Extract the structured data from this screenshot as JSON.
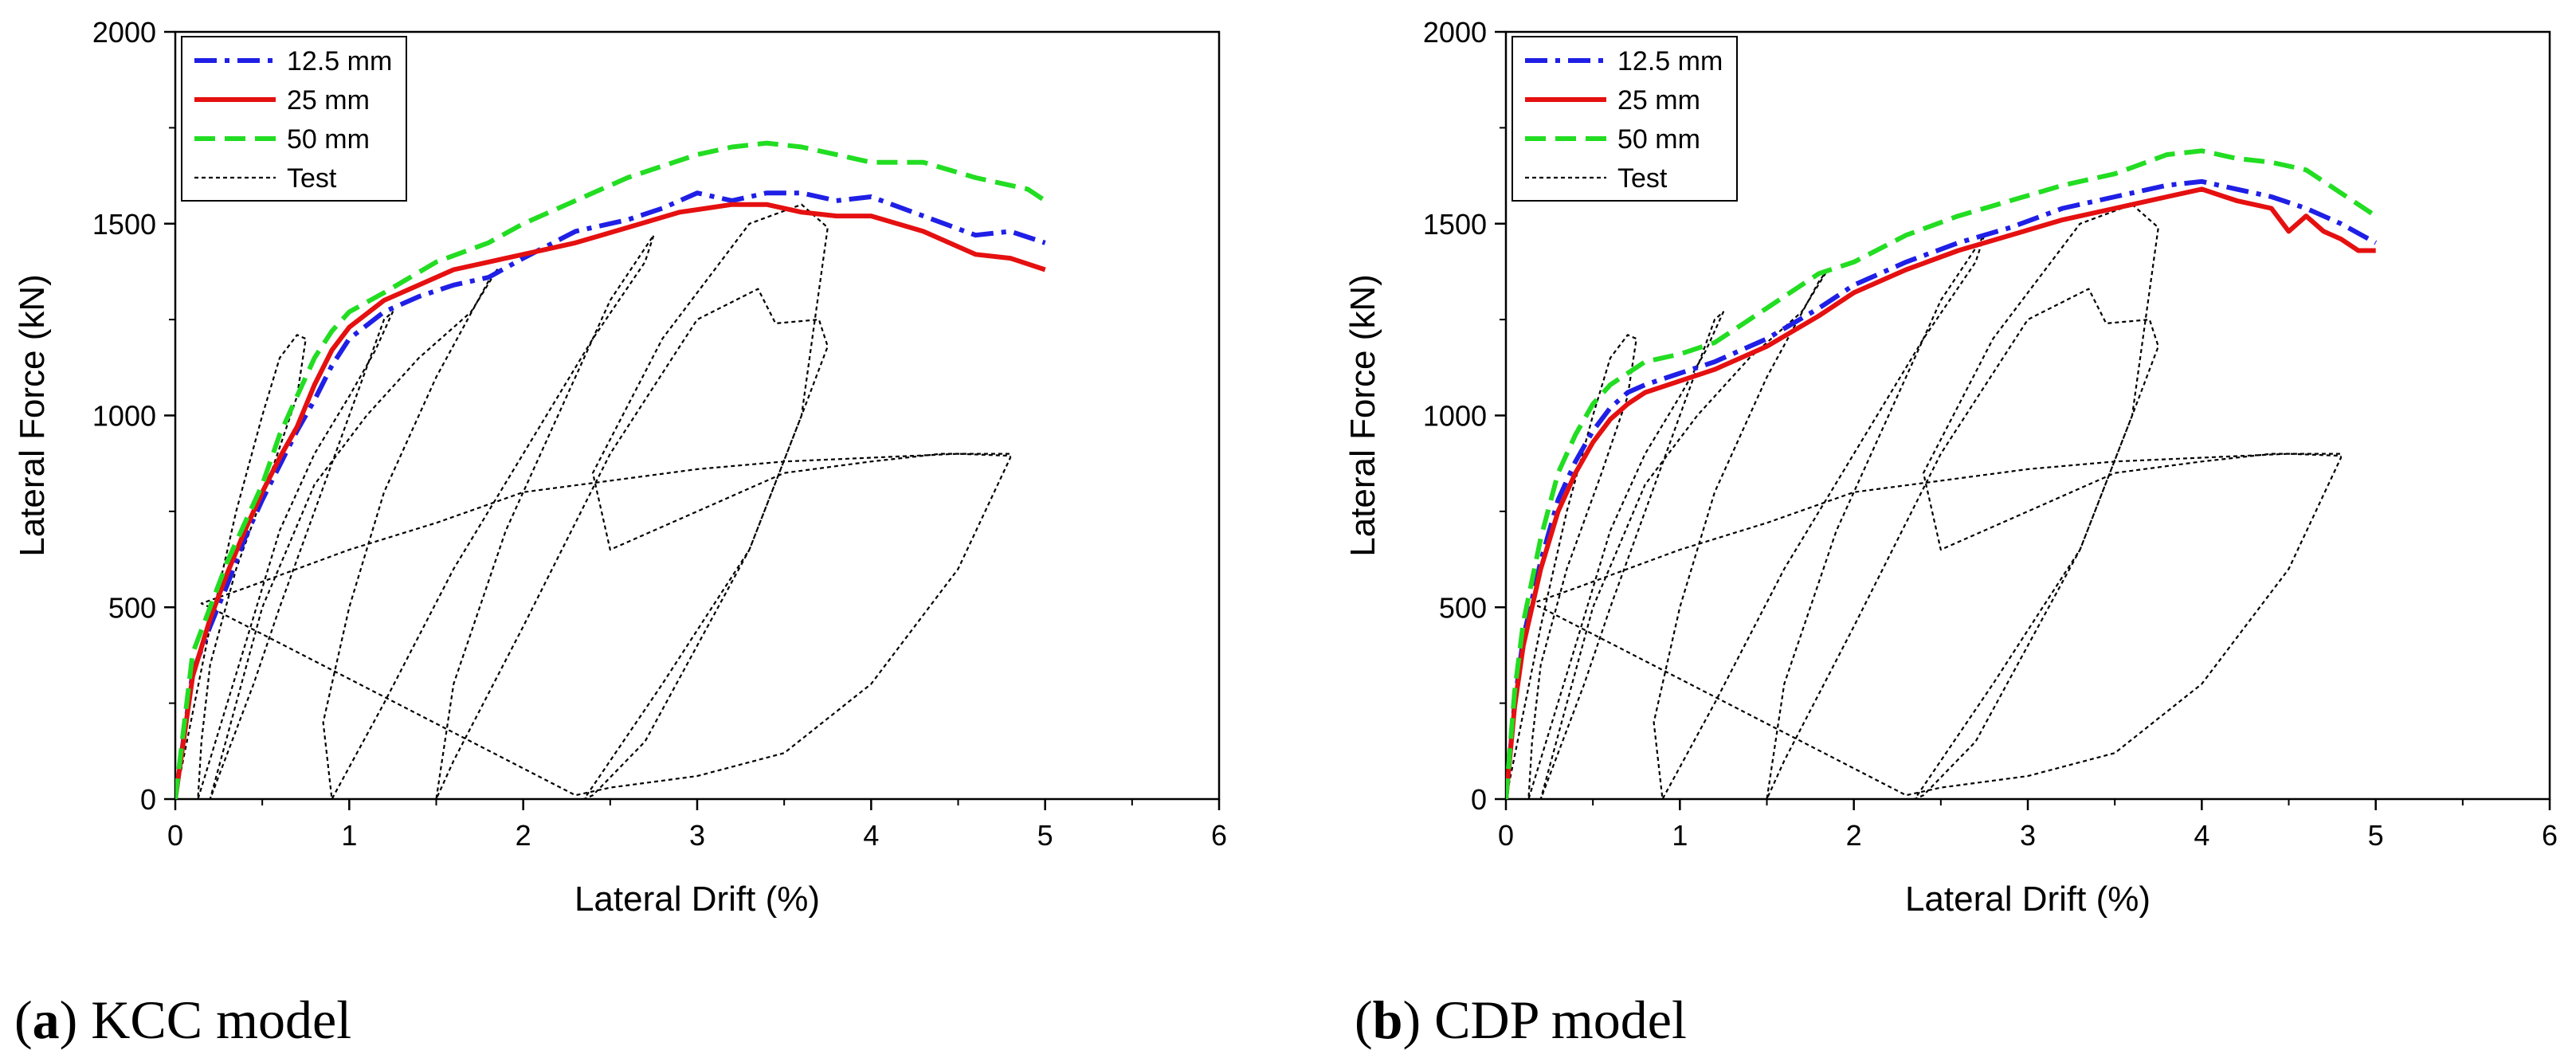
{
  "chart_data": [
    {
      "type": "line",
      "caption": {
        "letter": "(a)",
        "text": " KCC model"
      },
      "xlabel": "Lateral Drift (%)",
      "ylabel": "Lateral Force (kN)",
      "xlim": [
        0,
        6
      ],
      "ylim": [
        0,
        2000
      ],
      "xticks": [
        "0",
        "1",
        "2",
        "3",
        "4",
        "5",
        "6"
      ],
      "yticks": [
        "0",
        "500",
        "1000",
        "1500",
        "2000"
      ],
      "legend_position": "top-left",
      "series": [
        {
          "name": "12.5 mm",
          "color": "#1f1fe6",
          "dash": "dashdot",
          "x": [
            0,
            0.1,
            0.2,
            0.3,
            0.4,
            0.5,
            0.6,
            0.7,
            0.8,
            0.9,
            1.0,
            1.2,
            1.4,
            1.6,
            1.8,
            2.0,
            2.3,
            2.6,
            2.8,
            3.0,
            3.2,
            3.4,
            3.6,
            3.8,
            4.0,
            4.3,
            4.6,
            4.8,
            5.0
          ],
          "y": [
            0,
            330,
            450,
            560,
            680,
            780,
            870,
            960,
            1040,
            1130,
            1200,
            1270,
            1310,
            1340,
            1360,
            1410,
            1480,
            1510,
            1540,
            1580,
            1560,
            1580,
            1580,
            1560,
            1570,
            1520,
            1470,
            1480,
            1450
          ]
        },
        {
          "name": "25 mm",
          "color": "#e51010",
          "dash": "solid",
          "x": [
            0,
            0.1,
            0.2,
            0.3,
            0.4,
            0.5,
            0.6,
            0.7,
            0.8,
            0.9,
            1.0,
            1.2,
            1.4,
            1.6,
            1.8,
            2.0,
            2.3,
            2.6,
            2.9,
            3.2,
            3.4,
            3.6,
            3.8,
            4.0,
            4.3,
            4.6,
            4.8,
            5.0
          ],
          "y": [
            0,
            320,
            470,
            590,
            700,
            800,
            890,
            970,
            1080,
            1170,
            1230,
            1300,
            1340,
            1380,
            1400,
            1420,
            1450,
            1490,
            1530,
            1550,
            1550,
            1530,
            1520,
            1520,
            1480,
            1420,
            1410,
            1380
          ]
        },
        {
          "name": "50 mm",
          "color": "#22dd22",
          "dash": "dashed",
          "x": [
            0,
            0.1,
            0.2,
            0.3,
            0.4,
            0.5,
            0.6,
            0.7,
            0.8,
            0.9,
            1.0,
            1.2,
            1.5,
            1.8,
            2.0,
            2.3,
            2.6,
            2.8,
            3.0,
            3.2,
            3.4,
            3.6,
            3.8,
            4.0,
            4.3,
            4.6,
            4.9,
            5.0
          ],
          "y": [
            0,
            380,
            500,
            620,
            720,
            820,
            950,
            1050,
            1150,
            1220,
            1270,
            1320,
            1400,
            1450,
            1500,
            1560,
            1620,
            1650,
            1680,
            1700,
            1710,
            1700,
            1680,
            1660,
            1660,
            1620,
            1590,
            1560
          ]
        },
        {
          "name": "Test",
          "color": "#000000",
          "dash": "dotted",
          "x": [
            0,
            0.08,
            0.2,
            0.35,
            0.5,
            0.6,
            0.7,
            0.75,
            0.7,
            0.55,
            0.35,
            0.2,
            0.15,
            0.13,
            0.4,
            0.6,
            0.8,
            1.0,
            1.15,
            1.25,
            1.2,
            1.0,
            0.8,
            0.6,
            0.45,
            0.3,
            0.2,
            0.5,
            0.8,
            1.1,
            1.4,
            1.7,
            1.85,
            1.8,
            1.5,
            1.2,
            1.0,
            0.85,
            0.9,
            1.2,
            1.6,
            2.0,
            2.4,
            2.7,
            2.75,
            2.5,
            2.2,
            1.9,
            1.6,
            1.5,
            1.6,
            2.0,
            2.5,
            3.0,
            3.35,
            3.45,
            3.7,
            3.75,
            3.6,
            3.3,
            3.0,
            2.7,
            2.4,
            2.35,
            2.8,
            3.3,
            3.6,
            3.75,
            3.6,
            3.3,
            2.8,
            2.4,
            2.5,
            3.0,
            3.5,
            4.0,
            4.4,
            4.8,
            4.8,
            4.5,
            4.0,
            3.5,
            3.0,
            2.5,
            2.3,
            0.2,
            0.15,
            0.4,
            1.0,
            1.5,
            2.0,
            2.5,
            3.0,
            3.5,
            4.0,
            4.5,
            4.8
          ],
          "y": [
            0,
            180,
            450,
            750,
            1000,
            1150,
            1210,
            1200,
            1050,
            850,
            600,
            350,
            150,
            0,
            400,
            700,
            900,
            1050,
            1170,
            1270,
            1250,
            1000,
            750,
            500,
            300,
            120,
            0,
            500,
            820,
            1000,
            1150,
            1270,
            1380,
            1350,
            1100,
            800,
            500,
            200,
            0,
            250,
            600,
            900,
            1200,
            1400,
            1470,
            1300,
            1000,
            700,
            300,
            0,
            100,
            450,
            900,
            1250,
            1330,
            1240,
            1250,
            1180,
            1000,
            650,
            400,
            150,
            10,
            0,
            300,
            650,
            1000,
            1490,
            1550,
            1500,
            1200,
            850,
            650,
            750,
            850,
            880,
            900,
            900,
            890,
            600,
            300,
            120,
            60,
            30,
            10,
            500,
            510,
            550,
            650,
            720,
            800,
            830,
            860,
            880,
            890,
            900,
            895
          ]
        }
      ]
    },
    {
      "type": "line",
      "caption": {
        "letter": "(b)",
        "text": " CDP model"
      },
      "xlabel": "Lateral Drift (%)",
      "ylabel": "Lateral Force (kN)",
      "xlim": [
        0,
        6
      ],
      "ylim": [
        0,
        2000
      ],
      "xticks": [
        "0",
        "1",
        "2",
        "3",
        "4",
        "5",
        "6"
      ],
      "yticks": [
        "0",
        "500",
        "1000",
        "1500",
        "2000"
      ],
      "legend_position": "top-left",
      "series": [
        {
          "name": "12.5 mm",
          "color": "#1f1fe6",
          "dash": "dashdot",
          "x": [
            0,
            0.05,
            0.1,
            0.2,
            0.3,
            0.4,
            0.5,
            0.6,
            0.7,
            0.8,
            1.0,
            1.2,
            1.5,
            1.8,
            2.0,
            2.3,
            2.6,
            2.9,
            3.2,
            3.5,
            3.8,
            4.0,
            4.2,
            4.4,
            4.6,
            4.8,
            5.0
          ],
          "y": [
            0,
            250,
            420,
            620,
            780,
            880,
            960,
            1020,
            1060,
            1080,
            1110,
            1140,
            1200,
            1280,
            1340,
            1400,
            1450,
            1490,
            1540,
            1570,
            1600,
            1610,
            1590,
            1570,
            1540,
            1500,
            1450
          ]
        },
        {
          "name": "25 mm",
          "color": "#e51010",
          "dash": "solid",
          "x": [
            0,
            0.05,
            0.1,
            0.2,
            0.3,
            0.4,
            0.5,
            0.6,
            0.7,
            0.8,
            1.0,
            1.2,
            1.5,
            1.8,
            2.0,
            2.3,
            2.6,
            2.9,
            3.2,
            3.5,
            3.8,
            4.0,
            4.2,
            4.4,
            4.5,
            4.6,
            4.7,
            4.8,
            4.9,
            5.0
          ],
          "y": [
            0,
            240,
            400,
            600,
            750,
            850,
            930,
            990,
            1030,
            1060,
            1090,
            1120,
            1180,
            1260,
            1320,
            1380,
            1430,
            1470,
            1510,
            1540,
            1570,
            1590,
            1560,
            1540,
            1480,
            1520,
            1480,
            1460,
            1430,
            1430
          ]
        },
        {
          "name": "50 mm",
          "color": "#22dd22",
          "dash": "dashed",
          "x": [
            0,
            0.05,
            0.1,
            0.2,
            0.3,
            0.4,
            0.5,
            0.6,
            0.7,
            0.8,
            1.0,
            1.2,
            1.5,
            1.8,
            2.0,
            2.3,
            2.6,
            2.9,
            3.2,
            3.5,
            3.8,
            4.0,
            4.2,
            4.4,
            4.6,
            4.8,
            5.0
          ],
          "y": [
            0,
            280,
            460,
            680,
            850,
            950,
            1030,
            1080,
            1110,
            1140,
            1160,
            1190,
            1280,
            1370,
            1400,
            1470,
            1520,
            1560,
            1600,
            1630,
            1680,
            1690,
            1670,
            1660,
            1640,
            1580,
            1520
          ]
        },
        {
          "name": "Test",
          "color": "#000000",
          "dash": "dotted",
          "x": [
            0,
            0.08,
            0.2,
            0.35,
            0.5,
            0.6,
            0.7,
            0.75,
            0.7,
            0.55,
            0.35,
            0.2,
            0.15,
            0.13,
            0.4,
            0.6,
            0.8,
            1.0,
            1.15,
            1.25,
            1.2,
            1.0,
            0.8,
            0.6,
            0.45,
            0.3,
            0.2,
            0.5,
            0.8,
            1.1,
            1.4,
            1.7,
            1.85,
            1.8,
            1.5,
            1.2,
            1.0,
            0.85,
            0.9,
            1.2,
            1.6,
            2.0,
            2.4,
            2.7,
            2.75,
            2.5,
            2.2,
            1.9,
            1.6,
            1.5,
            1.6,
            2.0,
            2.5,
            3.0,
            3.35,
            3.45,
            3.7,
            3.75,
            3.6,
            3.3,
            3.0,
            2.7,
            2.4,
            2.35,
            2.8,
            3.3,
            3.6,
            3.75,
            3.6,
            3.3,
            2.8,
            2.4,
            2.5,
            3.0,
            3.5,
            4.0,
            4.4,
            4.8,
            4.8,
            4.5,
            4.0,
            3.5,
            3.0,
            2.5,
            2.3,
            0.2,
            0.15,
            0.4,
            1.0,
            1.5,
            2.0,
            2.5,
            3.0,
            3.5,
            4.0,
            4.5,
            4.8
          ],
          "y": [
            0,
            180,
            450,
            750,
            1000,
            1150,
            1210,
            1200,
            1050,
            850,
            600,
            350,
            150,
            0,
            400,
            700,
            900,
            1050,
            1170,
            1270,
            1250,
            1000,
            750,
            500,
            300,
            120,
            0,
            500,
            820,
            1000,
            1150,
            1270,
            1380,
            1350,
            1100,
            800,
            500,
            200,
            0,
            250,
            600,
            900,
            1200,
            1400,
            1470,
            1300,
            1000,
            700,
            300,
            0,
            100,
            450,
            900,
            1250,
            1330,
            1240,
            1250,
            1180,
            1000,
            650,
            400,
            150,
            10,
            0,
            300,
            650,
            1000,
            1490,
            1550,
            1500,
            1200,
            850,
            650,
            750,
            850,
            880,
            900,
            900,
            890,
            600,
            300,
            120,
            60,
            30,
            10,
            500,
            510,
            550,
            650,
            720,
            800,
            830,
            860,
            880,
            890,
            900,
            895
          ]
        }
      ]
    }
  ]
}
